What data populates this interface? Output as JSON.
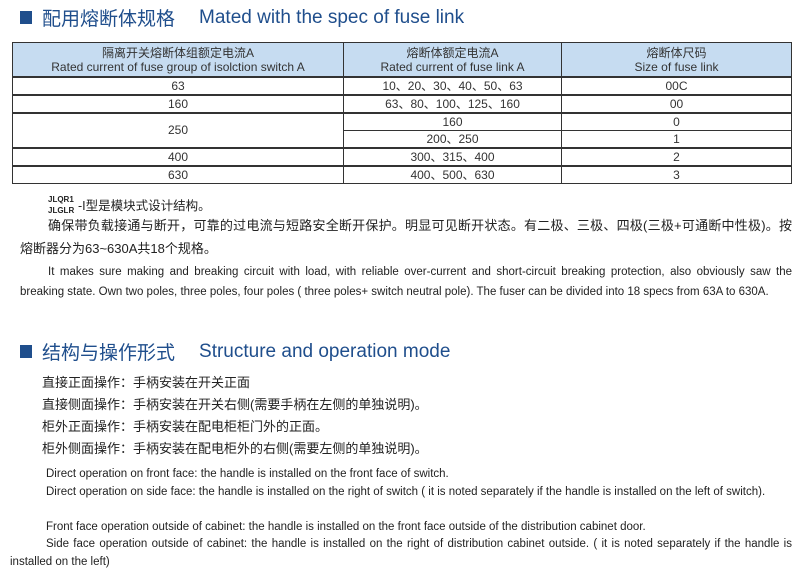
{
  "section1": {
    "title_cn": "配用熔断体规格",
    "title_en": "Mated with the spec of fuse link"
  },
  "table": {
    "headers": [
      {
        "cn": "隔离开关熔断体组额定电流A",
        "en": "Rated current of fuse group of isolction switch   A"
      },
      {
        "cn": "熔断体额定电流A",
        "en": "Rated current of fuse link   A"
      },
      {
        "cn": "熔断体尺码",
        "en": "Size of fuse link"
      }
    ],
    "rows": [
      {
        "switch": "63",
        "fuse": "10、20、30、40、50、63",
        "size": "00C"
      },
      {
        "switch": "160",
        "fuse": "63、80、100、125、160",
        "size": "00"
      },
      {
        "switch": "250",
        "fuse": "160",
        "size": "0"
      },
      {
        "fuse": "200、250",
        "size": "1"
      },
      {
        "switch": "400",
        "fuse": "300、315、400",
        "size": "2"
      },
      {
        "switch": "630",
        "fuse": "400、500、630",
        "size": "3"
      }
    ]
  },
  "intro": {
    "model1": "JLQR1",
    "model2": "JLGLR",
    "model_text": "-I型是模块式设计结构。",
    "cn": "确保带负载接通与断开，可靠的过电流与短路安全断开保护。明显可见断开状态。有二极、三极、四极(三极+可通断中性极)。按熔断器分为63~630A共18个规格。",
    "en": "It makes sure making and breaking circuit with load, with reliable over-current and short-circuit breaking protection, also obviously saw the breaking state. Own two poles, three poles, four poles ( three poles+ switch neutral pole). The fuser can be divided into 18 specs from 63A to 630A."
  },
  "section2": {
    "title_cn": "结构与操作形式",
    "title_en": "Structure and operation mode",
    "cn_items": [
      "直接正面操作：手柄安装在开关正面",
      "直接侧面操作：手柄安装在开关右侧(需要手柄在左侧的单独说明)。",
      "柜外正面操作：手柄安装在配电柜柜门外的正面。",
      "柜外侧面操作：手柄安装在配电柜外的右侧(需要左侧的单独说明)。"
    ],
    "en_items": [
      "Direct operation on front face: the handle is installed on the front face of switch.",
      "Direct operation on side face: the handle is installed on the right of switch ( it is noted separately if the handle is installed on the left of switch).",
      "Front face operation outside of cabinet: the handle is installed on the front face outside of the distribution cabinet door.",
      "Side face operation outside of cabinet: the handle is installed on the right of distribution cabinet outside. ( it is noted separately if the handle is installed on the left)"
    ]
  },
  "colors": {
    "heading": "#1f4e8c",
    "table_header": "#c6dcf1"
  }
}
